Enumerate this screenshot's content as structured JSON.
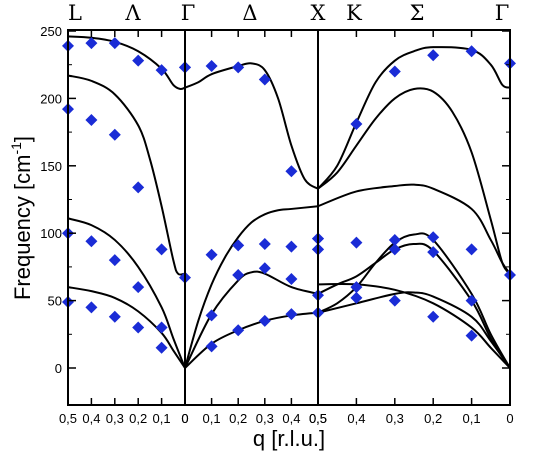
{
  "chart_data": {
    "type": "scatter",
    "ylabel": "Frequency [cm",
    "ylabel_sup": "-1",
    "ylabel_close": "]",
    "xlabel": "q [r.l.u.]",
    "ylim": [
      -30,
      250
    ],
    "yticks": [
      0,
      50,
      100,
      150,
      200,
      250
    ],
    "grid": false,
    "legend": "none",
    "marker_color": "#1a2cd6",
    "line_color": "#000000",
    "symmetry_labels": [
      "L",
      "Λ",
      "Γ",
      "Δ",
      "X",
      "K",
      "Σ",
      "Γ"
    ],
    "panels": [
      {
        "id": "Lambda",
        "x_ticks": [
          "0,5",
          "0,4",
          "0,3",
          "0,2",
          "0,1",
          "0"
        ],
        "x_range": [
          0.5,
          0
        ],
        "points": [
          [
            0.5,
            239
          ],
          [
            0.5,
            192
          ],
          [
            0.5,
            100
          ],
          [
            0.5,
            49
          ],
          [
            0.4,
            241
          ],
          [
            0.4,
            184
          ],
          [
            0.4,
            94
          ],
          [
            0.4,
            45
          ],
          [
            0.3,
            241
          ],
          [
            0.3,
            173
          ],
          [
            0.3,
            80
          ],
          [
            0.3,
            38
          ],
          [
            0.2,
            228
          ],
          [
            0.2,
            134
          ],
          [
            0.2,
            60
          ],
          [
            0.2,
            30
          ],
          [
            0.1,
            221
          ],
          [
            0.1,
            88
          ],
          [
            0.1,
            30
          ],
          [
            0.1,
            15
          ],
          [
            0,
            223
          ],
          [
            0,
            67
          ]
        ],
        "curves": [
          [
            [
              0.5,
              246
            ],
            [
              0.4,
              245
            ],
            [
              0.3,
              242
            ],
            [
              0.2,
              235
            ],
            [
              0.1,
              222
            ],
            [
              0.05,
              210
            ],
            [
              0.02,
              207
            ],
            [
              0,
              208
            ]
          ],
          [
            [
              0.5,
              217
            ],
            [
              0.4,
              213
            ],
            [
              0.3,
              203
            ],
            [
              0.2,
              180
            ],
            [
              0.15,
              155
            ],
            [
              0.1,
              120
            ],
            [
              0.05,
              80
            ],
            [
              0.03,
              70
            ],
            [
              0,
              70
            ]
          ],
          [
            [
              0.5,
              111
            ],
            [
              0.4,
              106
            ],
            [
              0.3,
              95
            ],
            [
              0.2,
              75
            ],
            [
              0.1,
              45
            ],
            [
              0.05,
              22
            ],
            [
              0,
              0
            ]
          ],
          [
            [
              0.5,
              60
            ],
            [
              0.4,
              57
            ],
            [
              0.3,
              52
            ],
            [
              0.2,
              42
            ],
            [
              0.1,
              26
            ],
            [
              0.05,
              13
            ],
            [
              0,
              0
            ]
          ]
        ]
      },
      {
        "id": "Delta",
        "x_ticks": [
          "0",
          "0,1",
          "0,2",
          "0,3",
          "0,4",
          "0,5"
        ],
        "x_range": [
          0,
          0.5
        ],
        "points": [
          [
            0,
            223
          ],
          [
            0.1,
            224
          ],
          [
            0.2,
            223
          ],
          [
            0.3,
            214
          ],
          [
            0.4,
            146
          ],
          [
            0.1,
            84
          ],
          [
            0.2,
            91
          ],
          [
            0.3,
            92
          ],
          [
            0.4,
            90
          ],
          [
            0.5,
            96
          ],
          [
            0.5,
            88
          ],
          [
            0.2,
            69
          ],
          [
            0.3,
            74
          ],
          [
            0.4,
            66
          ],
          [
            0.5,
            54
          ],
          [
            0.1,
            39
          ],
          [
            0.1,
            16
          ],
          [
            0.2,
            28
          ],
          [
            0.3,
            35
          ],
          [
            0.4,
            40
          ],
          [
            0.5,
            41
          ]
        ],
        "curves": [
          [
            [
              0,
              208
            ],
            [
              0.05,
              212
            ],
            [
              0.1,
              218
            ],
            [
              0.2,
              224
            ],
            [
              0.25,
              226
            ],
            [
              0.3,
              221
            ],
            [
              0.35,
              200
            ],
            [
              0.4,
              165
            ],
            [
              0.45,
              140
            ],
            [
              0.5,
              133
            ]
          ],
          [
            [
              0,
              0
            ],
            [
              0.05,
              35
            ],
            [
              0.1,
              62
            ],
            [
              0.15,
              82
            ],
            [
              0.2,
              97
            ],
            [
              0.25,
              108
            ],
            [
              0.3,
              114
            ],
            [
              0.35,
              117
            ],
            [
              0.4,
              118
            ],
            [
              0.5,
              120
            ]
          ],
          [
            [
              0,
              0
            ],
            [
              0.1,
              40
            ],
            [
              0.2,
              65
            ],
            [
              0.25,
              71
            ],
            [
              0.3,
              70
            ],
            [
              0.4,
              60
            ],
            [
              0.5,
              55
            ]
          ],
          [
            [
              0,
              0
            ],
            [
              0.1,
              18
            ],
            [
              0.2,
              28
            ],
            [
              0.3,
              35
            ],
            [
              0.4,
              39
            ],
            [
              0.5,
              41
            ]
          ]
        ]
      },
      {
        "id": "Sigma",
        "x_ticks": [
          "0,5",
          "0,4",
          "0,3",
          "0,2",
          "0,1",
          "0"
        ],
        "x_range": [
          0.5,
          0
        ],
        "points": [
          [
            0.4,
            181
          ],
          [
            0.3,
            220
          ],
          [
            0.2,
            232
          ],
          [
            0.1,
            235
          ],
          [
            0,
            226
          ],
          [
            0.5,
            96
          ],
          [
            0.4,
            93
          ],
          [
            0.3,
            95
          ],
          [
            0.2,
            97
          ],
          [
            0.1,
            88
          ],
          [
            0.3,
            88
          ],
          [
            0.2,
            86
          ],
          [
            0,
            69
          ],
          [
            0.5,
            88
          ],
          [
            0.4,
            60
          ],
          [
            0.4,
            52
          ],
          [
            0.3,
            50
          ],
          [
            0.2,
            38
          ],
          [
            0.1,
            50
          ],
          [
            0.1,
            24
          ]
        ],
        "curves": [
          [
            [
              0.5,
              133
            ],
            [
              0.45,
              150
            ],
            [
              0.4,
              182
            ],
            [
              0.35,
              212
            ],
            [
              0.3,
              228
            ],
            [
              0.25,
              235
            ],
            [
              0.2,
              238
            ],
            [
              0.1,
              236
            ],
            [
              0.05,
              225
            ],
            [
              0.02,
              210
            ],
            [
              0,
              208
            ]
          ],
          [
            [
              0.5,
              133
            ],
            [
              0.45,
              145
            ],
            [
              0.4,
              165
            ],
            [
              0.35,
              185
            ],
            [
              0.3,
              200
            ],
            [
              0.25,
              207
            ],
            [
              0.2,
              205
            ],
            [
              0.15,
              190
            ],
            [
              0.1,
              160
            ],
            [
              0.05,
              110
            ],
            [
              0.02,
              78
            ],
            [
              0,
              70
            ]
          ],
          [
            [
              0.5,
              120
            ],
            [
              0.4,
              131
            ],
            [
              0.3,
              135
            ],
            [
              0.25,
              136
            ],
            [
              0.2,
              133
            ],
            [
              0.1,
              118
            ],
            [
              0.05,
              95
            ],
            [
              0.02,
              78
            ],
            [
              0,
              70
            ]
          ],
          [
            [
              0.5,
              41
            ],
            [
              0.45,
              48
            ],
            [
              0.4,
              60
            ],
            [
              0.35,
              78
            ],
            [
              0.3,
              93
            ],
            [
              0.25,
              99
            ],
            [
              0.2,
              95
            ],
            [
              0.1,
              55
            ],
            [
              0.05,
              25
            ],
            [
              0,
              0
            ]
          ],
          [
            [
              0.5,
              55
            ],
            [
              0.45,
              62
            ],
            [
              0.4,
              68
            ],
            [
              0.35,
              78
            ],
            [
              0.3,
              88
            ],
            [
              0.25,
              92
            ],
            [
              0.2,
              87
            ],
            [
              0.1,
              50
            ],
            [
              0.05,
              22
            ],
            [
              0,
              0
            ]
          ],
          [
            [
              0.5,
              62
            ],
            [
              0.4,
              62
            ],
            [
              0.3,
              58
            ],
            [
              0.2,
              48
            ],
            [
              0.1,
              30
            ],
            [
              0.05,
              15
            ],
            [
              0,
              0
            ]
          ],
          [
            [
              0.5,
              41
            ],
            [
              0.4,
              48
            ],
            [
              0.3,
              55
            ],
            [
              0.25,
              56
            ],
            [
              0.2,
              53
            ],
            [
              0.1,
              38
            ],
            [
              0.05,
              20
            ],
            [
              0,
              0
            ]
          ]
        ]
      }
    ]
  }
}
